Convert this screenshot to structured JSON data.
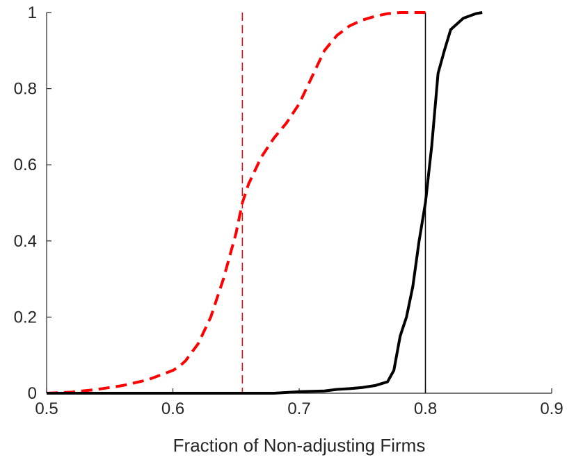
{
  "chart_data": {
    "type": "line",
    "title": "",
    "xlabel": "Fraction of Non-adjusting Firms",
    "ylabel": "",
    "xlim": [
      0.5,
      0.9
    ],
    "ylim": [
      0,
      1
    ],
    "x_ticks": [
      "0.5",
      "0.6",
      "0.7",
      "0.8",
      "0.9"
    ],
    "y_ticks": [
      "0",
      "0.2",
      "0.4",
      "0.6",
      "0.8",
      "1"
    ],
    "grid": false,
    "legend": "none",
    "colors": {
      "axis": "#262626",
      "red_series": "#ff0000",
      "black_series": "#000000"
    },
    "series": [
      {
        "style": "dashed",
        "color": "#ff0000",
        "points": [
          [
            0.5,
            0.0
          ],
          [
            0.52,
            0.003
          ],
          [
            0.54,
            0.01
          ],
          [
            0.56,
            0.02
          ],
          [
            0.58,
            0.035
          ],
          [
            0.6,
            0.06
          ],
          [
            0.605,
            0.07
          ],
          [
            0.61,
            0.085
          ],
          [
            0.62,
            0.13
          ],
          [
            0.63,
            0.2
          ],
          [
            0.64,
            0.3
          ],
          [
            0.65,
            0.42
          ],
          [
            0.655,
            0.5
          ],
          [
            0.66,
            0.55
          ],
          [
            0.67,
            0.62
          ],
          [
            0.68,
            0.67
          ],
          [
            0.69,
            0.71
          ],
          [
            0.7,
            0.76
          ],
          [
            0.71,
            0.83
          ],
          [
            0.72,
            0.9
          ],
          [
            0.73,
            0.94
          ],
          [
            0.74,
            0.965
          ],
          [
            0.75,
            0.98
          ],
          [
            0.76,
            0.99
          ],
          [
            0.77,
            0.997
          ],
          [
            0.78,
            1.0
          ],
          [
            0.8,
            1.0
          ]
        ]
      },
      {
        "style": "solid",
        "color": "#000000",
        "points": [
          [
            0.5,
            0.0
          ],
          [
            0.6,
            0.0
          ],
          [
            0.68,
            0.0
          ],
          [
            0.7,
            0.004
          ],
          [
            0.72,
            0.006
          ],
          [
            0.73,
            0.01
          ],
          [
            0.74,
            0.012
          ],
          [
            0.75,
            0.015
          ],
          [
            0.76,
            0.02
          ],
          [
            0.77,
            0.03
          ],
          [
            0.775,
            0.06
          ],
          [
            0.78,
            0.15
          ],
          [
            0.785,
            0.2
          ],
          [
            0.79,
            0.28
          ],
          [
            0.795,
            0.4
          ],
          [
            0.8,
            0.5
          ],
          [
            0.805,
            0.65
          ],
          [
            0.81,
            0.84
          ],
          [
            0.815,
            0.9
          ],
          [
            0.82,
            0.955
          ],
          [
            0.83,
            0.985
          ],
          [
            0.84,
            0.997
          ],
          [
            0.845,
            1.0
          ]
        ]
      }
    ],
    "vertical_lines": [
      {
        "x": 0.655,
        "style": "dashed",
        "color": "#ff0000"
      },
      {
        "x": 0.8,
        "style": "solid",
        "color": "#000000"
      }
    ]
  }
}
